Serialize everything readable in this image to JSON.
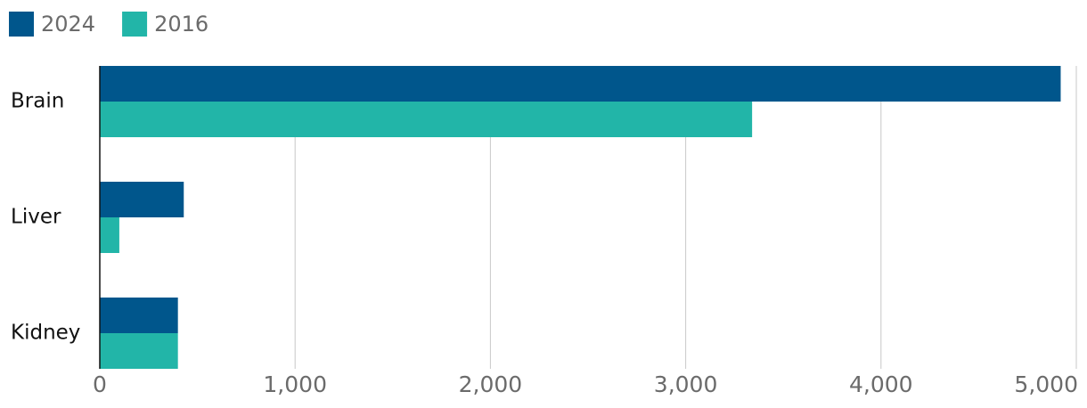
{
  "chart_data": {
    "type": "hbar",
    "categories": [
      "Brain",
      "Liver",
      "Kidney"
    ],
    "series": [
      {
        "name": "2024",
        "color": "#00568c",
        "values": [
          4920,
          430,
          400
        ]
      },
      {
        "name": "2016",
        "color": "#22b5a8",
        "values": [
          3340,
          100,
          400
        ]
      }
    ],
    "xlim": [
      0,
      5000
    ],
    "xticks": [
      0,
      {
        "value": 1000,
        "label": "1,000"
      },
      {
        "value": 2000,
        "label": "2,000"
      },
      {
        "value": 3000,
        "label": "3,000"
      },
      {
        "value": 4000,
        "label": "4,000"
      },
      {
        "value": 5000,
        "label": "5,000"
      }
    ],
    "grid": true,
    "legend": "top-left"
  }
}
